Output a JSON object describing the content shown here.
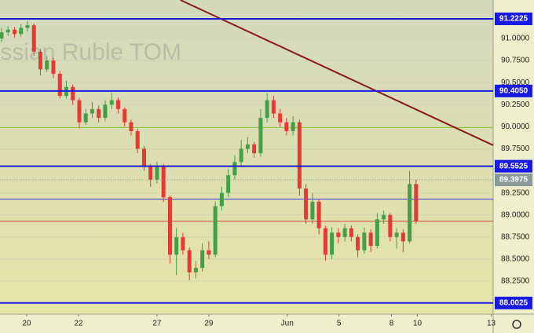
{
  "chart_data": {
    "type": "candlestick",
    "watermark": "Russian Ruble TOM",
    "x": [
      0,
      1,
      2,
      3,
      4,
      5,
      6,
      7,
      8,
      9,
      10,
      11,
      12,
      13,
      14,
      15,
      16,
      17,
      18,
      19,
      20,
      21,
      22,
      23,
      24,
      25,
      26,
      27,
      28,
      29,
      30,
      31,
      32,
      33,
      34,
      35,
      36,
      37,
      38,
      39,
      40,
      41,
      42,
      43,
      44,
      45,
      46,
      47,
      48,
      49,
      50,
      51,
      52,
      53,
      54,
      55,
      56,
      57,
      58,
      59,
      60,
      61,
      62,
      63,
      64
    ],
    "open": [
      91.0,
      91.07,
      91.1,
      91.05,
      91.12,
      91.15,
      90.85,
      90.65,
      90.75,
      90.6,
      90.35,
      90.45,
      90.3,
      90.05,
      90.15,
      90.2,
      90.1,
      90.25,
      90.3,
      90.2,
      90.05,
      89.95,
      89.75,
      89.55,
      89.4,
      89.55,
      89.2,
      88.55,
      88.75,
      88.6,
      88.35,
      88.4,
      88.6,
      88.55,
      89.1,
      89.25,
      89.45,
      89.6,
      89.75,
      89.8,
      89.7,
      90.1,
      90.3,
      90.15,
      90.05,
      89.95,
      90.05,
      89.3,
      88.95,
      89.15,
      88.85,
      88.55,
      88.8,
      88.75,
      88.85,
      88.75,
      88.6,
      88.8,
      88.65,
      88.95,
      89.0,
      88.75,
      88.8,
      88.7,
      89.35
    ],
    "high": [
      91.12,
      91.14,
      91.13,
      91.16,
      91.2,
      91.17,
      90.88,
      90.8,
      90.78,
      90.63,
      90.52,
      90.48,
      90.33,
      90.2,
      90.28,
      90.24,
      90.3,
      90.38,
      90.33,
      90.22,
      90.08,
      89.98,
      89.78,
      89.58,
      89.6,
      89.58,
      89.22,
      88.85,
      88.8,
      88.63,
      88.48,
      88.68,
      88.7,
      89.15,
      89.32,
      89.52,
      89.68,
      89.85,
      89.88,
      89.83,
      90.2,
      90.38,
      90.35,
      90.2,
      90.1,
      90.12,
      90.08,
      89.35,
      89.25,
      89.18,
      88.88,
      88.86,
      88.85,
      88.9,
      88.88,
      88.78,
      88.86,
      88.84,
      89.02,
      89.05,
      89.02,
      88.85,
      88.84,
      89.5,
      89.4
    ],
    "low": [
      90.96,
      91.03,
      91.01,
      91.02,
      91.08,
      90.8,
      90.58,
      90.62,
      90.55,
      90.32,
      90.32,
      90.25,
      89.98,
      90.02,
      90.1,
      90.05,
      90.06,
      90.2,
      90.15,
      90.0,
      89.9,
      89.7,
      89.5,
      89.32,
      89.36,
      89.15,
      88.45,
      88.32,
      88.55,
      88.26,
      88.28,
      88.36,
      88.5,
      88.52,
      89.05,
      89.2,
      89.4,
      89.55,
      89.7,
      89.65,
      89.66,
      90.05,
      90.1,
      90.0,
      89.9,
      89.9,
      89.22,
      88.9,
      88.9,
      88.78,
      88.48,
      88.5,
      88.68,
      88.7,
      88.7,
      88.52,
      88.56,
      88.58,
      88.62,
      88.9,
      88.7,
      88.62,
      88.58,
      88.68,
      88.9
    ],
    "close": [
      91.07,
      91.1,
      91.05,
      91.12,
      91.15,
      90.85,
      90.65,
      90.75,
      90.6,
      90.35,
      90.45,
      90.3,
      90.05,
      90.15,
      90.2,
      90.1,
      90.25,
      90.3,
      90.2,
      90.05,
      89.95,
      89.75,
      89.55,
      89.4,
      89.55,
      89.2,
      88.55,
      88.75,
      88.6,
      88.35,
      88.4,
      88.6,
      88.55,
      89.1,
      89.25,
      89.45,
      89.6,
      89.75,
      89.8,
      89.7,
      90.1,
      90.3,
      90.15,
      90.05,
      89.95,
      90.05,
      89.3,
      88.95,
      89.15,
      88.85,
      88.55,
      88.8,
      88.75,
      88.85,
      88.75,
      88.6,
      88.8,
      88.65,
      88.95,
      89.0,
      88.75,
      88.8,
      88.7,
      89.35,
      88.93
    ],
    "up_color": "#43a047",
    "down_color": "#e53935",
    "xlim": [
      -0.24,
      75.9
    ],
    "xticks": [
      {
        "value": 3.88,
        "label": "20"
      },
      {
        "value": 11.88,
        "label": "22"
      },
      {
        "value": 24,
        "label": "27"
      },
      {
        "value": 32,
        "label": "29"
      },
      {
        "value": 44.1,
        "label": "Jun"
      },
      {
        "value": 52.1,
        "label": "5"
      },
      {
        "value": 60.2,
        "label": "8"
      },
      {
        "value": 64.2,
        "label": "10"
      },
      {
        "value": 75.6,
        "label": "13"
      }
    ],
    "ylim": [
      87.876,
      91.436
    ],
    "yticks": [
      {
        "value": 91,
        "label": "91.0000"
      },
      {
        "value": 90.75,
        "label": "90.7500"
      },
      {
        "value": 90.5,
        "label": "90.5000"
      },
      {
        "value": 90.25,
        "label": "90.2500"
      },
      {
        "value": 90,
        "label": "90.0000"
      },
      {
        "value": 89.75,
        "label": "89.7500"
      },
      {
        "value": 89.25,
        "label": "89.2500"
      },
      {
        "value": 89,
        "label": "89.0000"
      },
      {
        "value": 88.75,
        "label": "88.7500"
      },
      {
        "value": 88.5,
        "label": "88.5000"
      },
      {
        "value": 88.25,
        "label": "88.2500"
      }
    ],
    "levels": [
      {
        "value": 91.2225,
        "label": "91.2225"
      },
      {
        "value": 90.405,
        "label": "90.4050"
      },
      {
        "value": 89.5525,
        "label": "89.5525"
      },
      {
        "value": 88.0025,
        "label": "88.0025"
      }
    ],
    "level_color": "#1a1ae6",
    "price": {
      "value": 89.3975,
      "label": "89.3975"
    },
    "lines": [
      {
        "value": 89.99,
        "color": "#8fce3a"
      },
      {
        "value": 89.18,
        "color": "#3a3af0"
      },
      {
        "value": 88.93,
        "color": "#d04a3a"
      }
    ],
    "trendline": {
      "x": [
        27.6,
        75.9
      ],
      "y": [
        91.436,
        89.79
      ],
      "color": "#8b1a1a"
    }
  }
}
